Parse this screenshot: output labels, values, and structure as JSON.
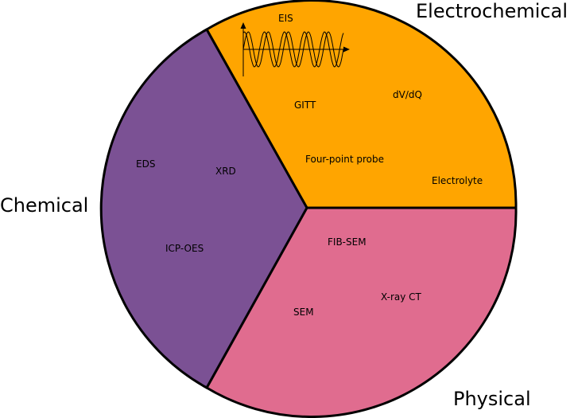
{
  "diagram": {
    "sectors": [
      {
        "name": "Electrochemical",
        "color": "#ffa500",
        "techniques": [
          "EIS",
          "GITT",
          "dV/dQ",
          "Four-point probe",
          "Electrolyte"
        ]
      },
      {
        "name": "Physical",
        "color": "#e06c8f",
        "techniques": [
          "FIB-SEM",
          "X-ray CT",
          "SEM"
        ]
      },
      {
        "name": "Chemical",
        "color": "#7b5194",
        "techniques": [
          "EDS",
          "XRD",
          "ICP-OES"
        ]
      }
    ],
    "outline_color": "#000000",
    "icons": [
      "sine-wave-icon"
    ]
  }
}
